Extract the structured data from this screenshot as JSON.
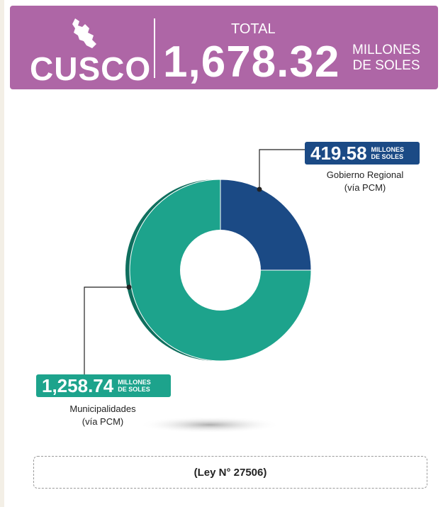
{
  "header": {
    "region": "CUSCO",
    "total_label": "TOTAL",
    "total_value": "1,678.32",
    "total_unit_line1": "MILLONES",
    "total_unit_line2": "DE SOLES"
  },
  "colors": {
    "header_bg": "#ae66a6",
    "gobierno": "#1b4a85",
    "municipalidades": "#1da38c"
  },
  "chart_data": {
    "type": "pie",
    "variant": "donut",
    "unit": "MILLONES DE SOLES",
    "slices": [
      {
        "name": "Gobierno Regional (vía PCM)",
        "value": 419.58,
        "color": "#1b4a85"
      },
      {
        "name": "Municipalidades (vía PCM)",
        "value": 1258.74,
        "color": "#1da38c"
      }
    ]
  },
  "callouts": {
    "gobierno": {
      "value": "419.58",
      "unit_line1": "MILLONES",
      "unit_line2": "DE SOLES",
      "label_line1": "Gobierno Regional",
      "label_line2": "(vía PCM)"
    },
    "municipalidades": {
      "value": "1,258.74",
      "unit_line1": "MILLONES",
      "unit_line2": "DE SOLES",
      "label_line1": "Municipalidades",
      "label_line2": "(vía PCM)"
    }
  },
  "footer": {
    "law": "(Ley N° 27506)"
  }
}
